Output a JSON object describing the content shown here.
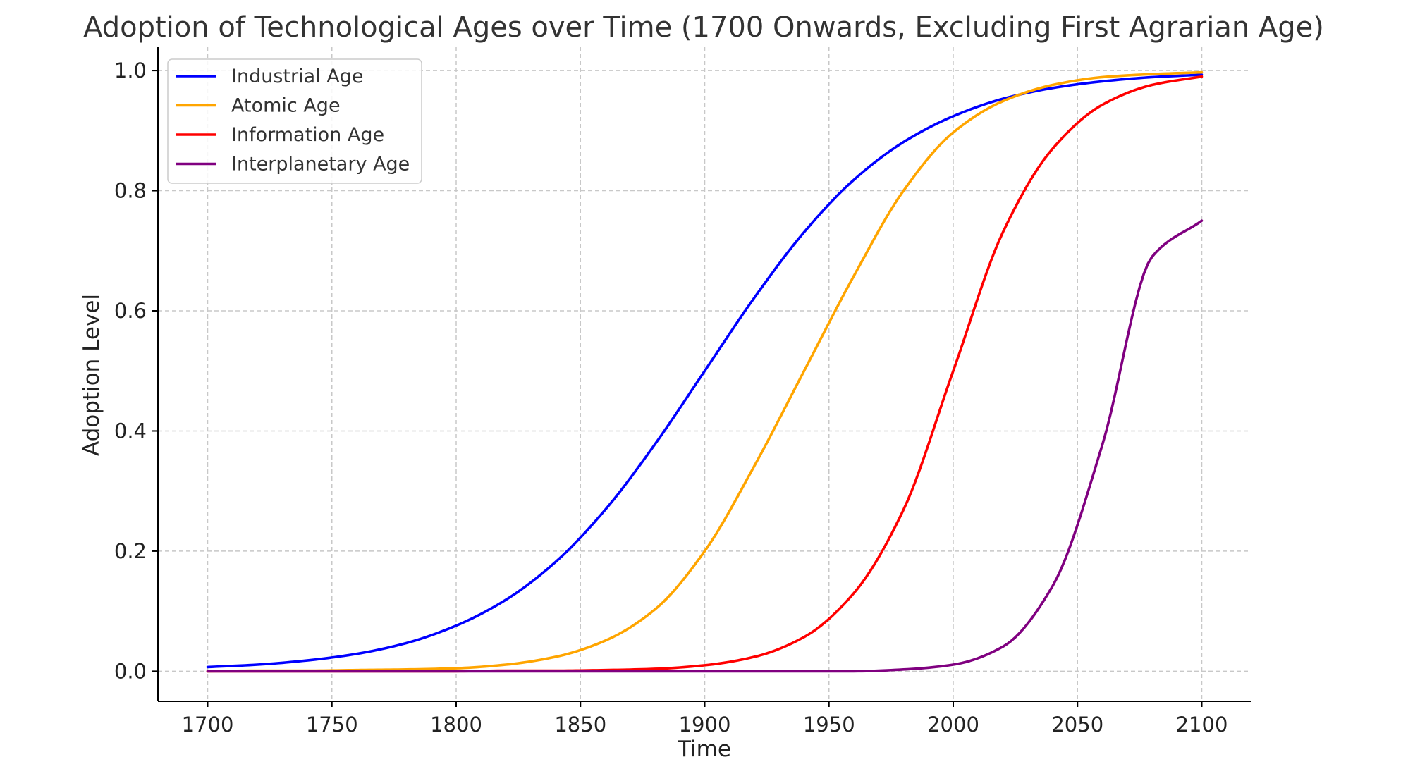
{
  "chart_data": {
    "type": "line",
    "title": "Adoption of Technological Ages over Time (1700 Onwards, Excluding First Agrarian Age)",
    "xlabel": "Time",
    "ylabel": "Adoption Level",
    "xlim": [
      1680,
      2120
    ],
    "ylim": [
      -0.05,
      1.04
    ],
    "xticks": [
      1700,
      1750,
      1800,
      1850,
      1900,
      1950,
      2000,
      2050,
      2100
    ],
    "xtick_labels": [
      "1700",
      "1750",
      "1800",
      "1850",
      "1900",
      "1950",
      "2000",
      "2050",
      "2100"
    ],
    "yticks": [
      0.0,
      0.2,
      0.4,
      0.6,
      0.8,
      1.0
    ],
    "ytick_labels": [
      "0.0",
      "0.2",
      "0.4",
      "0.6",
      "0.8",
      "1.0"
    ],
    "grid": true,
    "legend_position": "upper-left",
    "x": [
      1700,
      1720,
      1740,
      1760,
      1780,
      1800,
      1820,
      1840,
      1860,
      1880,
      1900,
      1920,
      1940,
      1960,
      1980,
      2000,
      2020,
      2040,
      2060,
      2080,
      2100
    ],
    "series": [
      {
        "name": "Industrial Age",
        "color": "#0000ff",
        "values": [
          0.007,
          0.011,
          0.018,
          0.029,
          0.047,
          0.076,
          0.119,
          0.182,
          0.269,
          0.378,
          0.5,
          0.622,
          0.731,
          0.818,
          0.881,
          0.924,
          0.953,
          0.971,
          0.982,
          0.989,
          0.993
        ]
      },
      {
        "name": "Atomic Age",
        "color": "#ffa500",
        "values": [
          0.0,
          0.001,
          0.001,
          0.002,
          0.003,
          0.005,
          0.011,
          0.024,
          0.051,
          0.103,
          0.2,
          0.342,
          0.5,
          0.658,
          0.8,
          0.897,
          0.949,
          0.976,
          0.989,
          0.994,
          0.997
        ]
      },
      {
        "name": "Information Age",
        "color": "#ff0000",
        "values": [
          0.0,
          0.0,
          0.0,
          0.0,
          0.0,
          0.0,
          0.001,
          0.001,
          0.002,
          0.004,
          0.01,
          0.024,
          0.057,
          0.13,
          0.269,
          0.5,
          0.731,
          0.87,
          0.943,
          0.976,
          0.99
        ]
      },
      {
        "name": "Interplanetary Age",
        "color": "#800080",
        "values": [
          0.0,
          0.0,
          0.0,
          0.0,
          0.0,
          0.0,
          0.0,
          0.0,
          0.0,
          0.0,
          0.0,
          0.0,
          0.0,
          0.0,
          0.003,
          0.011,
          0.041,
          0.142,
          0.377,
          0.69,
          0.75
        ]
      }
    ]
  }
}
